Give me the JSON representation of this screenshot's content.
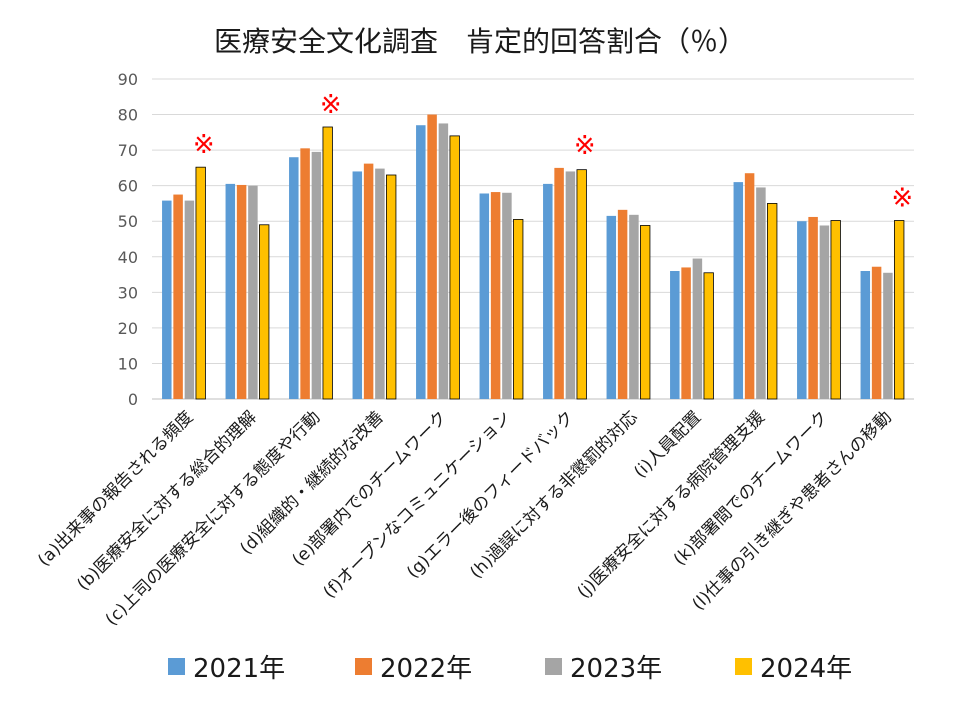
{
  "chart_data": {
    "type": "bar",
    "title": "医療安全文化調査　肯定的回答割合（％）",
    "xlabel": "",
    "ylabel": "",
    "ylim": [
      0,
      90
    ],
    "yticks": [
      0,
      10,
      20,
      30,
      40,
      50,
      60,
      70,
      80,
      90
    ],
    "grid": true,
    "legend_position": "bottom",
    "categories": [
      "(a)出来事の報告される頻度",
      "(b)医療安全に対する総合的理解",
      "(c)上司の医療安全に対する態度や行動",
      "(d)組織的・継続的な改善",
      "(e)部署内でのチームワーク",
      "(f)オープンなコミュニケーション",
      "(g)エラー後のフィードバック",
      "(h)過誤に対する非懲罰的対応",
      "(i)人員配置",
      "(j)医療安全に対する病院管理支援",
      "(k)部署間でのチームワーク",
      "(l)仕事の引き継ぎや患者さんの移動"
    ],
    "series": [
      {
        "name": "2021年",
        "color": "#5b9bd5",
        "values": [
          55.8,
          60.5,
          68,
          64,
          77,
          57.8,
          60.5,
          51.5,
          36,
          61,
          50,
          36
        ]
      },
      {
        "name": "2022年",
        "color": "#ed7d31",
        "values": [
          57.5,
          60.2,
          70.5,
          66.2,
          80,
          58.2,
          65,
          53.2,
          37,
          63.5,
          51.2,
          37.2
        ]
      },
      {
        "name": "2023年",
        "color": "#a5a5a5",
        "values": [
          55.8,
          60,
          69.5,
          64.8,
          77.5,
          58,
          64,
          51.8,
          39.5,
          59.5,
          48.8,
          35.5
        ]
      },
      {
        "name": "2024年",
        "color": "#ffc000",
        "values": [
          65.2,
          49,
          76.5,
          63,
          74,
          50.5,
          64.5,
          48.8,
          35.5,
          55,
          50.2,
          50.2
        ]
      }
    ],
    "annotations": [
      {
        "category_index": 0,
        "text": "※",
        "color": "#ff0000"
      },
      {
        "category_index": 2,
        "text": "※",
        "color": "#ff0000"
      },
      {
        "category_index": 6,
        "text": "※",
        "color": "#ff0000"
      },
      {
        "category_index": 11,
        "text": "※",
        "color": "#ff0000"
      }
    ]
  }
}
